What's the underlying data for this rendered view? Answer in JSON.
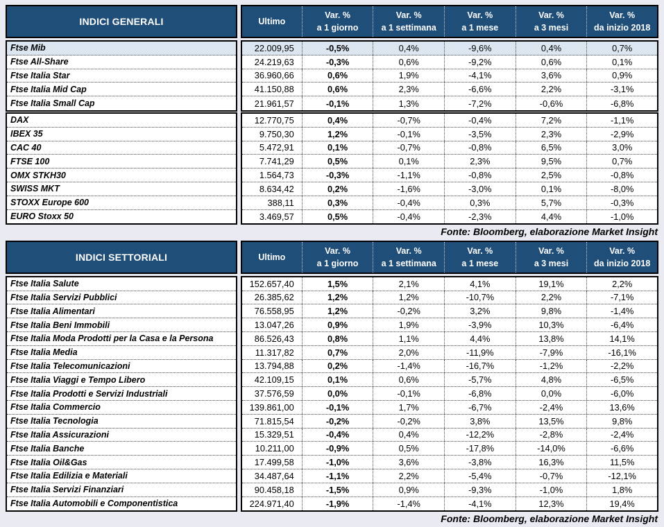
{
  "colors": {
    "header_bg": "#1F4E79",
    "header_text": "#FFFFFF",
    "highlight_row": "#DCE6F1",
    "page_bg": "#EAEBF2"
  },
  "columns": {
    "ultimo": "Ultimo",
    "var_headers": [
      {
        "line1": "Var. %",
        "line2": "a 1 giorno"
      },
      {
        "line1": "Var. %",
        "line2": "a 1 settimana"
      },
      {
        "line1": "Var. %",
        "line2": "a 1 mese"
      },
      {
        "line1": "Var. %",
        "line2": "a 3 mesi"
      },
      {
        "line1": "Var. %",
        "line2": "da inizio 2018"
      }
    ]
  },
  "tables": [
    {
      "title": "INDICI GENERALI",
      "footer": "Fonte: Bloomberg, elaborazione Market Insight",
      "blocks": [
        {
          "rows": [
            {
              "name": "Ftse Mib",
              "ultimo": "22.009,95",
              "d1": "-0,5%",
              "w1": "0,4%",
              "m1": "-9,6%",
              "m3": "0,4%",
              "ytd": "0,7%",
              "highlight": true
            },
            {
              "name": "Ftse All-Share",
              "ultimo": "24.219,63",
              "d1": "-0,3%",
              "w1": "0,6%",
              "m1": "-9,2%",
              "m3": "0,6%",
              "ytd": "0,1%"
            },
            {
              "name": "Ftse Italia Star",
              "ultimo": "36.960,66",
              "d1": "0,6%",
              "w1": "1,9%",
              "m1": "-4,1%",
              "m3": "3,6%",
              "ytd": "0,9%"
            },
            {
              "name": "Ftse Italia Mid Cap",
              "ultimo": "41.150,88",
              "d1": "0,6%",
              "w1": "2,3%",
              "m1": "-6,6%",
              "m3": "2,2%",
              "ytd": "-3,1%"
            },
            {
              "name": "Ftse Italia Small Cap",
              "ultimo": "21.961,57",
              "d1": "-0,1%",
              "w1": "1,3%",
              "m1": "-7,2%",
              "m3": "-0,6%",
              "ytd": "-6,8%"
            }
          ]
        },
        {
          "rows": [
            {
              "name": "DAX",
              "ultimo": "12.770,75",
              "d1": "0,4%",
              "w1": "-0,7%",
              "m1": "-0,4%",
              "m3": "7,2%",
              "ytd": "-1,1%"
            },
            {
              "name": "IBEX 35",
              "ultimo": "9.750,30",
              "d1": "1,2%",
              "w1": "-0,1%",
              "m1": "-3,5%",
              "m3": "2,3%",
              "ytd": "-2,9%"
            },
            {
              "name": "CAC 40",
              "ultimo": "5.472,91",
              "d1": "0,1%",
              "w1": "-0,7%",
              "m1": "-0,8%",
              "m3": "6,5%",
              "ytd": "3,0%"
            },
            {
              "name": "FTSE 100",
              "ultimo": "7.741,29",
              "d1": "0,5%",
              "w1": "0,1%",
              "m1": "2,3%",
              "m3": "9,5%",
              "ytd": "0,7%"
            },
            {
              "name": "OMX STKH30",
              "ultimo": "1.564,73",
              "d1": "-0,3%",
              "w1": "-1,1%",
              "m1": "-0,8%",
              "m3": "2,5%",
              "ytd": "-0,8%"
            },
            {
              "name": "SWISS MKT",
              "ultimo": "8.634,42",
              "d1": "0,2%",
              "w1": "-1,6%",
              "m1": "-3,0%",
              "m3": "0,1%",
              "ytd": "-8,0%"
            },
            {
              "name": "STOXX Europe 600",
              "ultimo": "388,11",
              "d1": "0,3%",
              "w1": "-0,4%",
              "m1": "0,3%",
              "m3": "5,7%",
              "ytd": "-0,3%"
            },
            {
              "name": "EURO Stoxx 50",
              "ultimo": "3.469,57",
              "d1": "0,5%",
              "w1": "-0,4%",
              "m1": "-2,3%",
              "m3": "4,4%",
              "ytd": "-1,0%"
            }
          ]
        }
      ]
    },
    {
      "title": "INDICI SETTORIALI",
      "footer": "Fonte: Bloomberg, elaborazione Market Insight",
      "blocks": [
        {
          "rows": [
            {
              "name": "Ftse Italia Salute",
              "ultimo": "152.657,40",
              "d1": "1,5%",
              "w1": "2,1%",
              "m1": "4,1%",
              "m3": "19,1%",
              "ytd": "2,2%"
            },
            {
              "name": "Ftse Italia Servizi Pubblici",
              "ultimo": "26.385,62",
              "d1": "1,2%",
              "w1": "1,2%",
              "m1": "-10,7%",
              "m3": "2,2%",
              "ytd": "-7,1%"
            },
            {
              "name": "Ftse Italia Alimentari",
              "ultimo": "76.558,95",
              "d1": "1,2%",
              "w1": "-0,2%",
              "m1": "3,2%",
              "m3": "9,8%",
              "ytd": "-1,4%"
            },
            {
              "name": "Ftse Italia Beni Immobili",
              "ultimo": "13.047,26",
              "d1": "0,9%",
              "w1": "1,9%",
              "m1": "-3,9%",
              "m3": "10,3%",
              "ytd": "-6,4%"
            },
            {
              "name": "Ftse Italia Moda Prodotti per la Casa e la Persona",
              "ultimo": "86.526,43",
              "d1": "0,8%",
              "w1": "1,1%",
              "m1": "4,4%",
              "m3": "13,8%",
              "ytd": "14,1%"
            },
            {
              "name": "Ftse Italia Media",
              "ultimo": "11.317,82",
              "d1": "0,7%",
              "w1": "2,0%",
              "m1": "-11,9%",
              "m3": "-7,9%",
              "ytd": "-16,1%"
            },
            {
              "name": "Ftse Italia Telecomunicazioni",
              "ultimo": "13.794,88",
              "d1": "0,2%",
              "w1": "-1,4%",
              "m1": "-16,7%",
              "m3": "-1,2%",
              "ytd": "-2,2%"
            },
            {
              "name": "Ftse Italia Viaggi e Tempo Libero",
              "ultimo": "42.109,15",
              "d1": "0,1%",
              "w1": "0,6%",
              "m1": "-5,7%",
              "m3": "4,8%",
              "ytd": "-6,5%"
            },
            {
              "name": "Ftse Italia Prodotti e Servizi Industriali",
              "ultimo": "37.576,59",
              "d1": "0,0%",
              "w1": "-0,1%",
              "m1": "-6,8%",
              "m3": "0,0%",
              "ytd": "-6,0%"
            },
            {
              "name": "Ftse Italia Commercio",
              "ultimo": "139.861,00",
              "d1": "-0,1%",
              "w1": "1,7%",
              "m1": "-6,7%",
              "m3": "-2,4%",
              "ytd": "13,6%"
            },
            {
              "name": "Ftse Italia Tecnologia",
              "ultimo": "71.815,54",
              "d1": "-0,2%",
              "w1": "-0,2%",
              "m1": "3,8%",
              "m3": "13,5%",
              "ytd": "9,8%"
            },
            {
              "name": "Ftse Italia Assicurazioni",
              "ultimo": "15.329,51",
              "d1": "-0,4%",
              "w1": "0,4%",
              "m1": "-12,2%",
              "m3": "-2,8%",
              "ytd": "-2,4%"
            },
            {
              "name": "Ftse Italia Banche",
              "ultimo": "10.211,00",
              "d1": "-0,9%",
              "w1": "0,5%",
              "m1": "-17,8%",
              "m3": "-14,0%",
              "ytd": "-6,6%"
            },
            {
              "name": "Ftse Italia Oil&Gas",
              "ultimo": "17.499,58",
              "d1": "-1,0%",
              "w1": "3,6%",
              "m1": "-3,8%",
              "m3": "16,3%",
              "ytd": "11,5%"
            },
            {
              "name": "Ftse Italia Edilizia e Materiali",
              "ultimo": "34.487,64",
              "d1": "-1,1%",
              "w1": "2,2%",
              "m1": "-5,4%",
              "m3": "-0,7%",
              "ytd": "-12,1%"
            },
            {
              "name": "Ftse Italia Servizi Finanziari",
              "ultimo": "90.458,18",
              "d1": "-1,5%",
              "w1": "0,9%",
              "m1": "-9,3%",
              "m3": "-1,0%",
              "ytd": "1,8%"
            },
            {
              "name": "Ftse Italia Automobili e Componentistica",
              "ultimo": "224.971,40",
              "d1": "-1,9%",
              "w1": "-1,4%",
              "m1": "-4,1%",
              "m3": "12,3%",
              "ytd": "19,4%"
            }
          ]
        }
      ]
    }
  ]
}
